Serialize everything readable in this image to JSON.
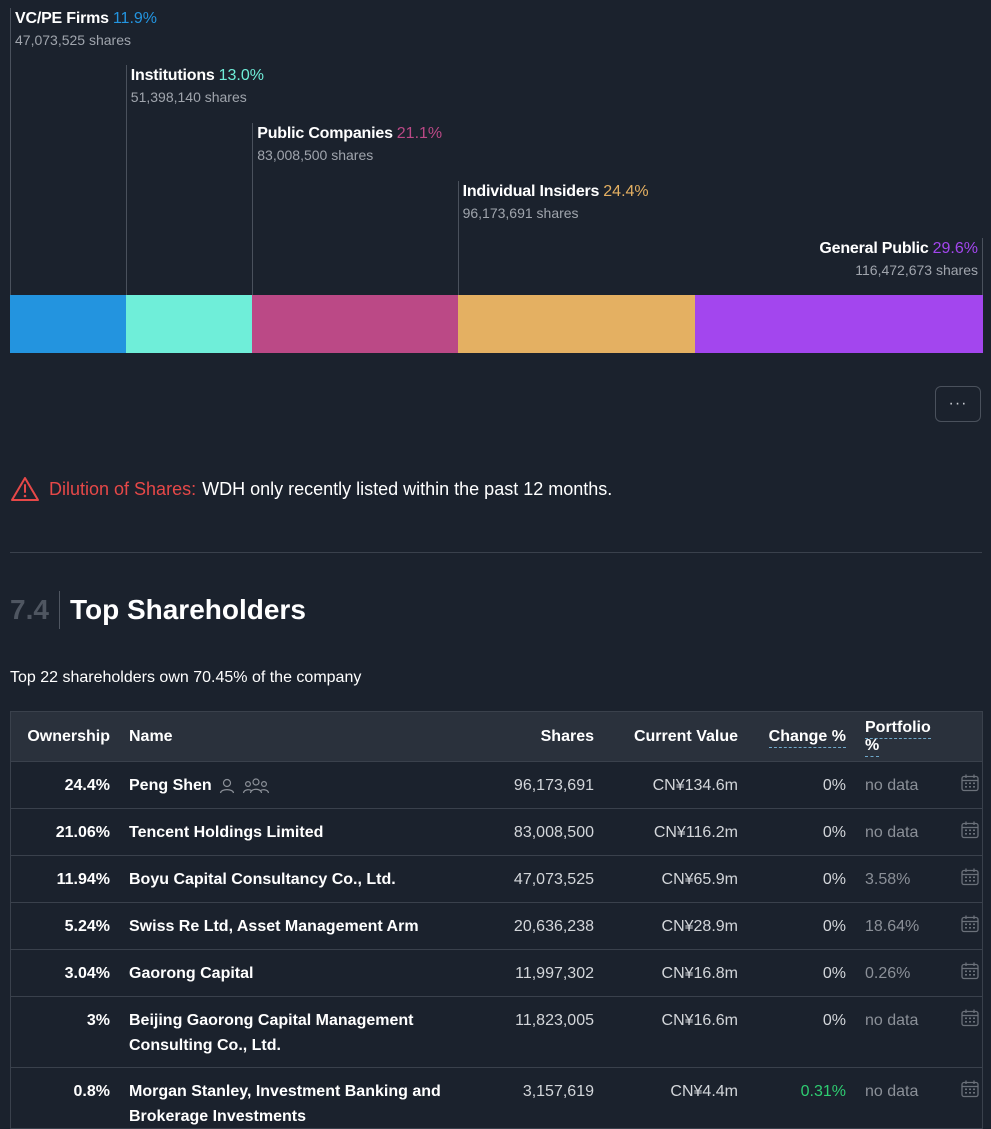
{
  "chart_data": {
    "type": "bar",
    "categories": [
      "VC/PE Firms",
      "Institutions",
      "Public Companies",
      "Individual Insiders",
      "General Public"
    ],
    "values": [
      11.9,
      13.0,
      21.1,
      24.4,
      29.6
    ],
    "pct_labels": [
      "11.9%",
      "13.0%",
      "21.1%",
      "24.4%",
      "29.6%"
    ],
    "shares": [
      "47,073,525 shares",
      "51,398,140 shares",
      "83,008,500 shares",
      "96,173,691 shares",
      "116,472,673 shares"
    ],
    "colors": [
      "#2394df",
      "#6feed9",
      "#bb4986",
      "#e4b062",
      "#a346ee"
    ],
    "stacked": true
  },
  "more_button": {
    "label": "···"
  },
  "warning": {
    "icon": "warning-triangle-icon",
    "label": "Dilution of Shares:",
    "text": "WDH only recently listed within the past 12 months."
  },
  "section": {
    "number": "7.4",
    "title": "Top Shareholders",
    "summary": "Top 22 shareholders own 70.45% of the company"
  },
  "table": {
    "headers": {
      "ownership": "Ownership",
      "name": "Name",
      "shares": "Shares",
      "value": "Current Value",
      "change": "Change %",
      "portfolio": "Portfolio %"
    },
    "rows": [
      {
        "ownership": "24.4%",
        "name": "Peng Shen",
        "shares": "96,173,691",
        "value": "CN¥134.6m",
        "change": "0%",
        "portfolio": "no data",
        "icons": [
          "person-icon",
          "group-icon"
        ]
      },
      {
        "ownership": "21.06%",
        "name": "Tencent Holdings Limited",
        "shares": "83,008,500",
        "value": "CN¥116.2m",
        "change": "0%",
        "portfolio": "no data"
      },
      {
        "ownership": "11.94%",
        "name": "Boyu Capital Consultancy Co., Ltd.",
        "shares": "47,073,525",
        "value": "CN¥65.9m",
        "change": "0%",
        "portfolio": "3.58%"
      },
      {
        "ownership": "5.24%",
        "name": "Swiss Re Ltd, Asset Management Arm",
        "shares": "20,636,238",
        "value": "CN¥28.9m",
        "change": "0%",
        "portfolio": "18.64%"
      },
      {
        "ownership": "3.04%",
        "name": "Gaorong Capital",
        "shares": "11,997,302",
        "value": "CN¥16.8m",
        "change": "0%",
        "portfolio": "0.26%"
      },
      {
        "ownership": "3%",
        "name": "Beijing Gaorong Capital Management Consulting Co., Ltd.",
        "shares": "11,823,005",
        "value": "CN¥16.6m",
        "change": "0%",
        "portfolio": "no data"
      },
      {
        "ownership": "0.8%",
        "name": "Morgan Stanley, Investment Banking and Brokerage Investments",
        "shares": "3,157,619",
        "value": "CN¥4.4m",
        "change": "0.31%",
        "portfolio": "no data",
        "change_positive": true
      }
    ]
  }
}
